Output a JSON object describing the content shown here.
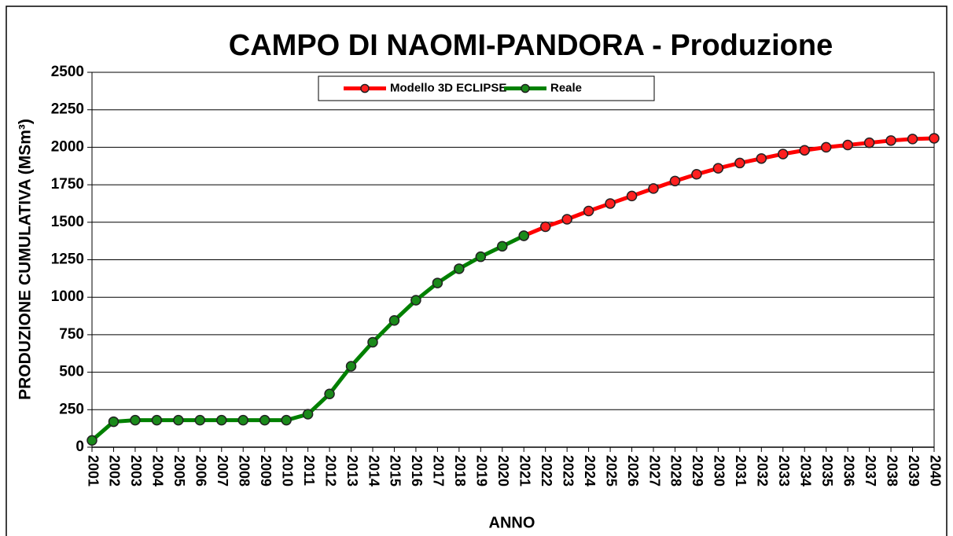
{
  "chart_data": {
    "type": "line",
    "title": "CAMPO DI NAOMI-PANDORA - Produzione",
    "x_label": "ANNO",
    "y_label": "PRODUZIONE CUMULATIVA (MSm³)",
    "categories": [
      "2001",
      "2002",
      "2003",
      "2004",
      "2005",
      "2006",
      "2007",
      "2008",
      "2009",
      "2010",
      "2011",
      "2012",
      "2013",
      "2014",
      "2015",
      "2016",
      "2017",
      "2018",
      "2019",
      "2020",
      "2021",
      "2022",
      "2023",
      "2024",
      "2025",
      "2026",
      "2027",
      "2028",
      "2029",
      "2030",
      "2031",
      "2032",
      "2033",
      "2034",
      "2035",
      "2036",
      "2037",
      "2038",
      "2039",
      "2040"
    ],
    "series": [
      {
        "name": "Modello 3D ECLIPSE",
        "color": "#ff0000",
        "marker_color": "#ff2020",
        "values": [
          null,
          null,
          null,
          null,
          null,
          null,
          null,
          null,
          null,
          null,
          null,
          null,
          null,
          null,
          null,
          null,
          null,
          null,
          null,
          null,
          1410,
          1470,
          1520,
          1575,
          1625,
          1675,
          1725,
          1775,
          1820,
          1860,
          1895,
          1925,
          1955,
          1980,
          2000,
          2015,
          2030,
          2045,
          2055,
          2060
        ]
      },
      {
        "name": "Reale",
        "color": "#008000",
        "marker_color": "#1a8a1a",
        "values": [
          45,
          170,
          180,
          180,
          180,
          180,
          180,
          180,
          180,
          180,
          220,
          355,
          540,
          700,
          845,
          980,
          1095,
          1190,
          1270,
          1340,
          1410,
          null,
          null,
          null,
          null,
          null,
          null,
          null,
          null,
          null,
          null,
          null,
          null,
          null,
          null,
          null,
          null,
          null,
          null,
          null
        ]
      }
    ],
    "ylim": [
      0,
      2500
    ],
    "yticks": [
      0,
      250,
      500,
      750,
      1000,
      1250,
      1500,
      1750,
      2000,
      2250,
      2500
    ],
    "grid": true
  }
}
